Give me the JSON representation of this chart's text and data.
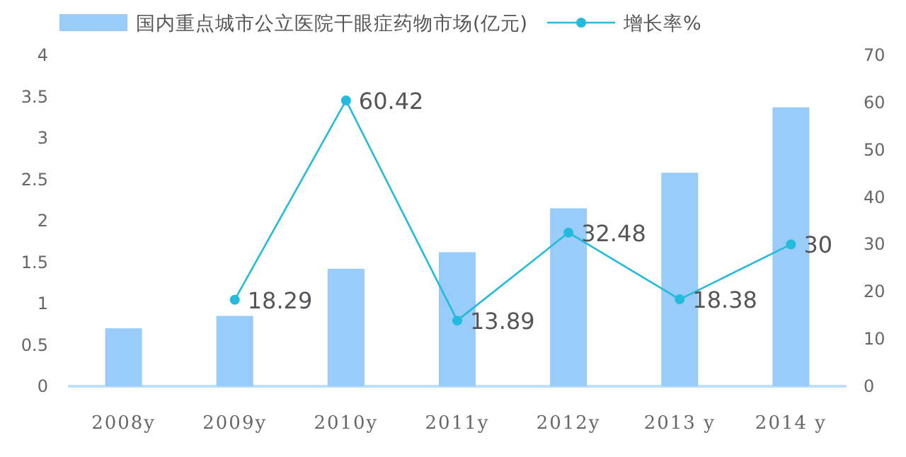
{
  "chart_data": {
    "type": "bar",
    "categories": [
      "2008y",
      "2009y",
      "2010y",
      "2011y",
      "2012y",
      "2013 y",
      "2014 y"
    ],
    "series": [
      {
        "name": "国内重点城市公立医院干眼症药物市场(亿元)",
        "color": "#99ccf9",
        "values": [
          0.7,
          0.85,
          1.42,
          1.62,
          2.15,
          2.58,
          3.37
        ]
      },
      {
        "name": "增长率%",
        "type": "line",
        "axis": "y2",
        "color": "#22bbdd",
        "values": [
          null,
          18.29,
          60.42,
          13.89,
          32.48,
          18.38,
          30
        ],
        "value_labels": [
          null,
          "18.29",
          "60.42",
          "13.89",
          "32.48",
          "18.38",
          "30"
        ]
      }
    ],
    "ylim": [
      0,
      4
    ],
    "yticks": [
      0,
      0.5,
      1,
      1.5,
      2,
      2.5,
      3,
      3.5,
      4
    ],
    "y2lim": [
      0,
      70
    ],
    "y2ticks": [
      0,
      10,
      20,
      30,
      40,
      50,
      60,
      70
    ],
    "legend": "top",
    "grid": false,
    "marker": "circle"
  }
}
